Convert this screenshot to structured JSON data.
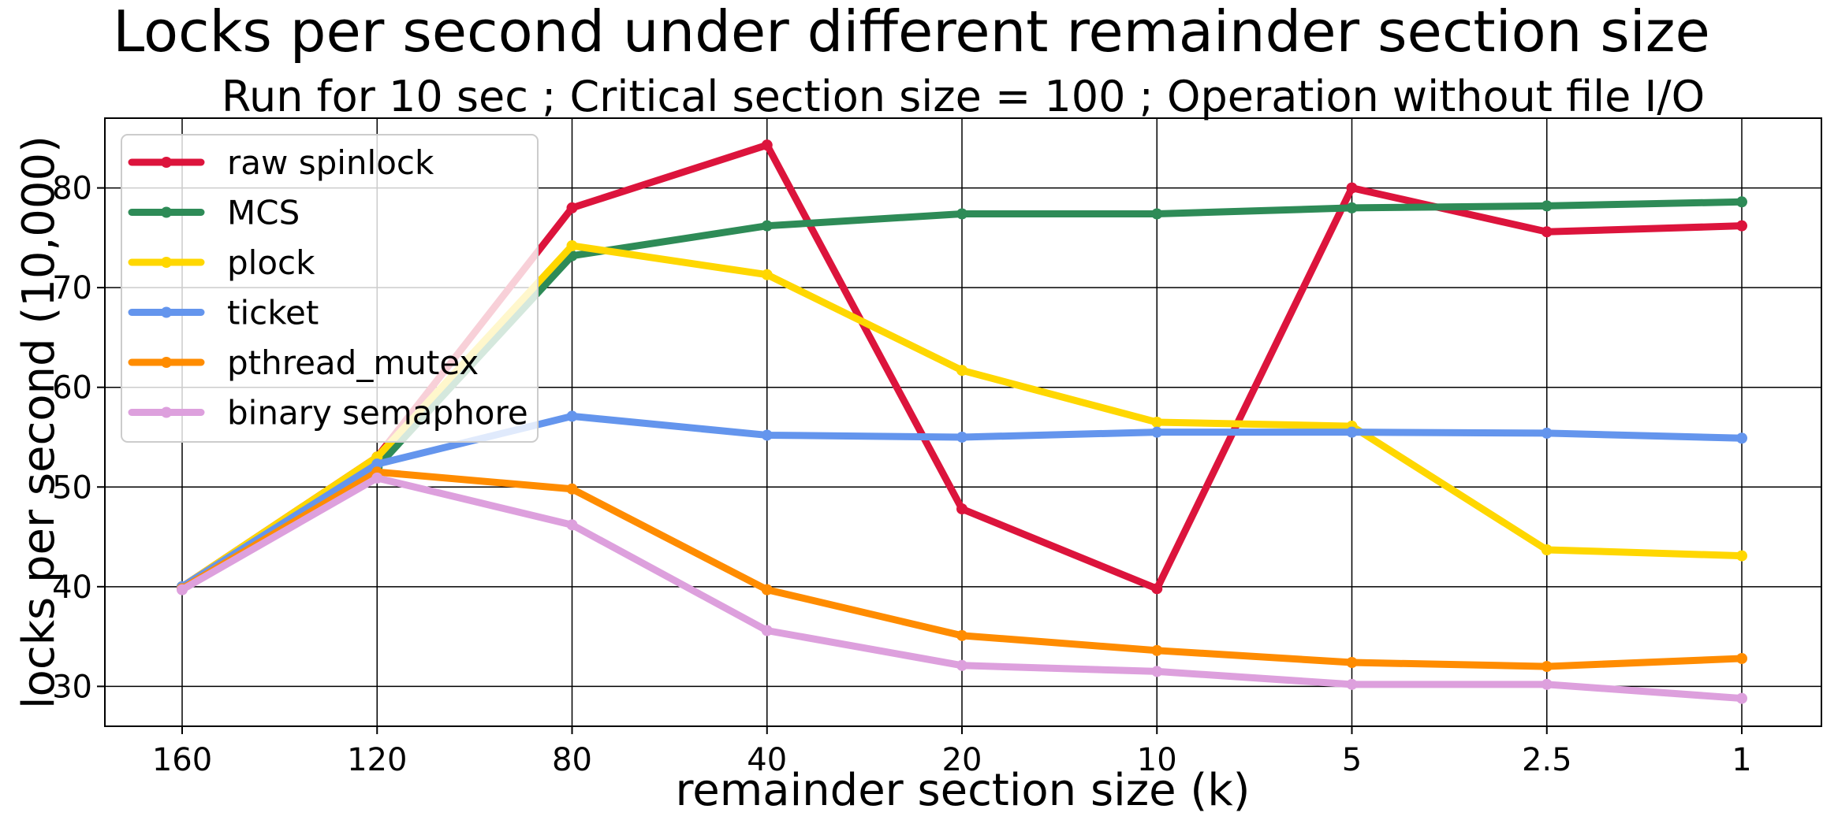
{
  "chart_data": {
    "type": "line",
    "title": "Locks per second under different remainder section size",
    "subtitle": "Run for 10 sec ; Critical section size = 100 ; Operation without file I/O",
    "xlabel": "remainder section size (k)",
    "ylabel": "locks per second (10,000)",
    "categories": [
      "160",
      "120",
      "80",
      "40",
      "20",
      "10",
      "5",
      "2.5",
      "1"
    ],
    "ylim": [
      26,
      87
    ],
    "yticks": [
      30,
      40,
      50,
      60,
      70,
      80
    ],
    "grid": true,
    "legend_position": "top-left",
    "series": [
      {
        "name": "raw spinlock",
        "color": "#dc143c",
        "values": [
          40.0,
          53.0,
          78.0,
          84.3,
          47.8,
          39.8,
          80.0,
          75.6,
          76.2
        ]
      },
      {
        "name": "MCS",
        "color": "#2e8b57",
        "values": [
          40.0,
          52.0,
          73.2,
          76.2,
          77.4,
          77.4,
          78.0,
          78.2,
          78.6
        ]
      },
      {
        "name": "plock",
        "color": "#ffd700",
        "values": [
          40.0,
          53.0,
          74.2,
          71.3,
          61.7,
          56.5,
          56.1,
          43.7,
          43.1
        ]
      },
      {
        "name": "ticket",
        "color": "#6495ed",
        "values": [
          40.0,
          52.3,
          57.1,
          55.2,
          55.0,
          55.5,
          55.5,
          55.4,
          54.9
        ]
      },
      {
        "name": "pthread_mutex",
        "color": "#ff8c00",
        "values": [
          39.8,
          51.5,
          49.8,
          39.7,
          35.1,
          33.6,
          32.4,
          32.0,
          32.8
        ]
      },
      {
        "name": "binary semaphore",
        "color": "#dda0dd",
        "values": [
          39.7,
          50.9,
          46.2,
          35.6,
          32.1,
          31.5,
          30.2,
          30.2,
          28.8
        ]
      }
    ]
  }
}
